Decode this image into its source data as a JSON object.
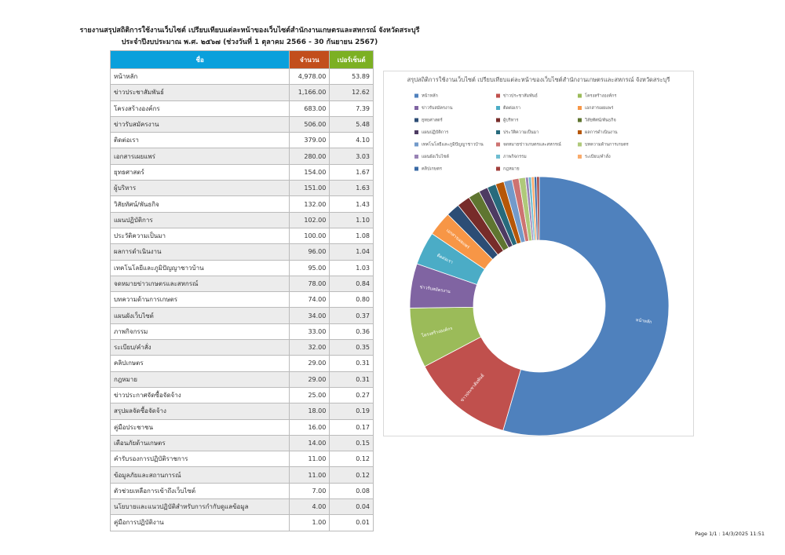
{
  "header": {
    "title": "รายงานสรุปสถิติการใช้งานเว็บไซต์ เปรียบเทียบแต่ละหน้าของเว็บไซต์สำนักงานเกษตรและสหกรณ์ จังหวัดสระบุรี",
    "subtitle": "ประจำปีงบประมาณ พ.ศ. ๒๕๖๗ (ช่วงวันที่ 1 ตุลาคม 2566 - 30 กันยายน 2567)"
  },
  "table": {
    "columns": [
      "ชื่อ",
      "จำนวน",
      "เปอร์เซ็นต์"
    ],
    "rows": [
      [
        "หน้าหลัก",
        "4,978.00",
        "53.89"
      ],
      [
        "ข่าวประชาสัมพันธ์",
        "1,166.00",
        "12.62"
      ],
      [
        "โครงสร้างองค์กร",
        "683.00",
        "7.39"
      ],
      [
        "ข่าวรับสมัครงาน",
        "506.00",
        "5.48"
      ],
      [
        "ติดต่อเรา",
        "379.00",
        "4.10"
      ],
      [
        "เอกสารเผยแพร่",
        "280.00",
        "3.03"
      ],
      [
        "ยุทธศาสตร์",
        "154.00",
        "1.67"
      ],
      [
        "ผู้บริหาร",
        "151.00",
        "1.63"
      ],
      [
        "วิสัยทัศน์/พันธกิจ",
        "132.00",
        "1.43"
      ],
      [
        "แผนปฏิบัติการ",
        "102.00",
        "1.10"
      ],
      [
        "ประวัติความเป็นมา",
        "100.00",
        "1.08"
      ],
      [
        "ผลการดำเนินงาน",
        "96.00",
        "1.04"
      ],
      [
        "เทคโนโลยีและภูมิปัญญาชาวบ้าน",
        "95.00",
        "1.03"
      ],
      [
        "จดหมายข่าวเกษตรและสหกรณ์",
        "78.00",
        "0.84"
      ],
      [
        "บทความด้านการเกษตร",
        "74.00",
        "0.80"
      ],
      [
        "แผนผังเว็บไซต์",
        "34.00",
        "0.37"
      ],
      [
        "ภาพกิจกรรม",
        "33.00",
        "0.36"
      ],
      [
        "ระเบียบ/คำสั่ง",
        "32.00",
        "0.35"
      ],
      [
        "คลิปเกษตร",
        "29.00",
        "0.31"
      ],
      [
        "กฎหมาย",
        "29.00",
        "0.31"
      ],
      [
        "ข่าวประกาศจัดซื้อจัดจ้าง",
        "25.00",
        "0.27"
      ],
      [
        "สรุปผลจัดซื้อจัดจ้าง",
        "18.00",
        "0.19"
      ],
      [
        "คู่มือประชาชน",
        "16.00",
        "0.17"
      ],
      [
        "เตือนภัยด้านเกษตร",
        "14.00",
        "0.15"
      ],
      [
        "คำรับรองการปฏิบัติราชการ",
        "11.00",
        "0.12"
      ],
      [
        "ข้อมูลภัยและสถานการณ์",
        "11.00",
        "0.12"
      ],
      [
        "ตัวช่วยเหลือการเข้าถึงเว็บไซต์",
        "7.00",
        "0.08"
      ],
      [
        "นโยบายและแนวปฏิบัติสำหรับการกำกับดูแลข้อมูล",
        "4.00",
        "0.04"
      ],
      [
        "คู่มือการปฏิบัติงาน",
        "1.00",
        "0.01"
      ]
    ]
  },
  "chart_data": {
    "type": "pie",
    "title": "สรุปสถิติการใช้งานเว็บไซต์ เปรียบเทียบแต่ละหน้าของเว็บไซต์สำนักงานเกษตรและสหกรณ์ จังหวัดสระบุรี",
    "categories": [
      "หน้าหลัก",
      "ข่าวประชาสัมพันธ์",
      "โครงสร้างองค์กร",
      "ข่าวรับสมัครงาน",
      "ติดต่อเรา",
      "เอกสารเผยแพร่",
      "ยุทธศาสตร์",
      "ผู้บริหาร",
      "วิสัยทัศน์/พันธกิจ",
      "แผนปฏิบัติการ",
      "ประวัติความเป็นมา",
      "ผลการดำเนินงาน",
      "เทคโนโลยีและภูมิปัญญาชาวบ้าน",
      "จดหมายข่าวเกษตรและสหกรณ์",
      "บทความด้านการเกษตร",
      "แผนผังเว็บไซต์",
      "ภาพกิจกรรม",
      "ระเบียบ/คำสั่ง",
      "คลิปเกษตร",
      "กฎหมาย"
    ],
    "values": [
      4978,
      1166,
      683,
      506,
      379,
      280,
      154,
      151,
      132,
      102,
      100,
      96,
      95,
      78,
      74,
      34,
      33,
      32,
      29,
      29
    ],
    "colors": [
      "#4f81bd",
      "#c0504d",
      "#9bbb59",
      "#8064a2",
      "#4bacc6",
      "#f79646",
      "#2c4d75",
      "#772c2a",
      "#5f7530",
      "#4d3b62",
      "#276a7c",
      "#b65708",
      "#729aca",
      "#cd7371",
      "#afc97a",
      "#9983b5",
      "#6fbdd1",
      "#f9ab6b",
      "#3a6aa5",
      "#a13f3c"
    ]
  },
  "footer": "Page 1/1 : 14/3/2025 11:51"
}
